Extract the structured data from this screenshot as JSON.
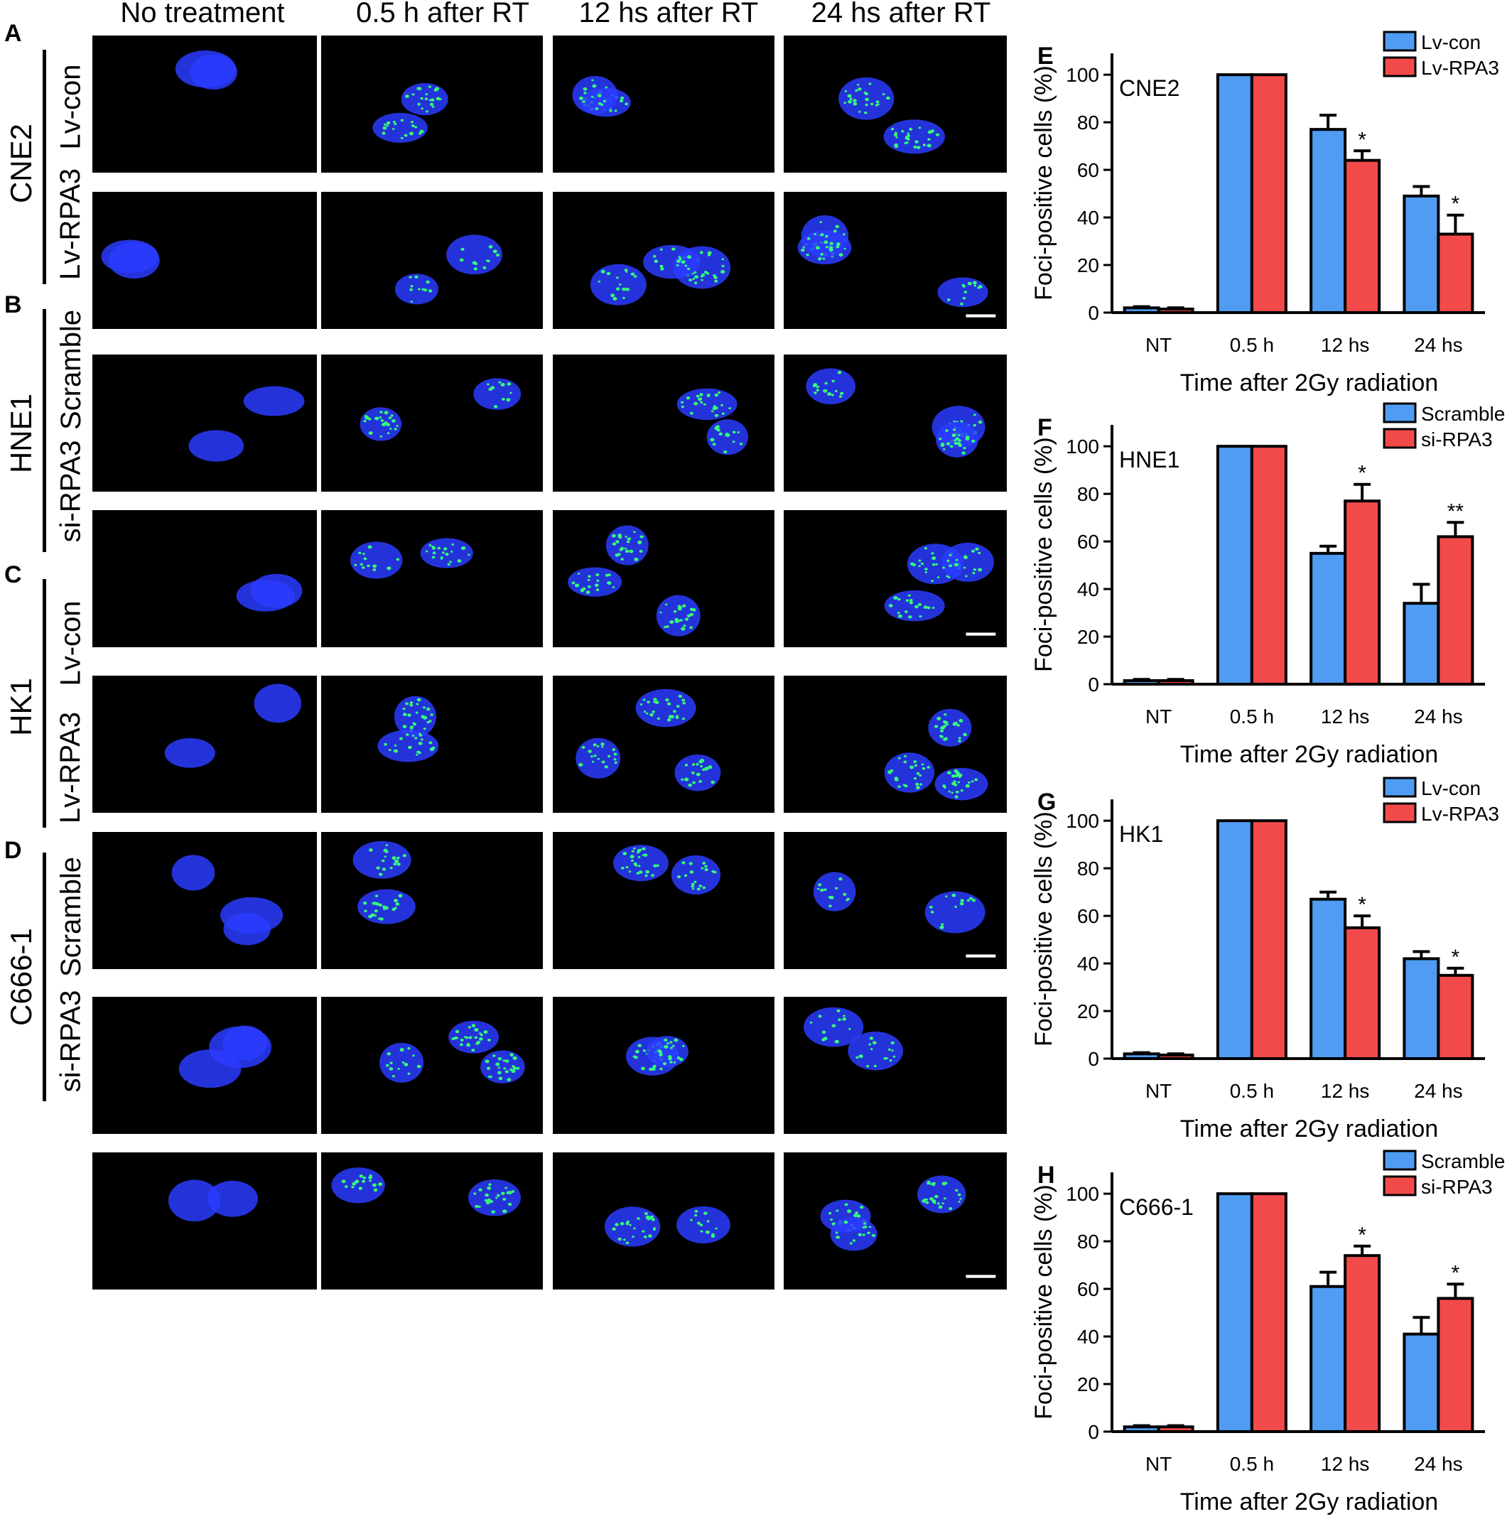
{
  "figure": {
    "column_headers": [
      "No treatment",
      "0.5 h after RT",
      "12 hs after RT",
      "24 hs after RT"
    ],
    "panels": [
      {
        "letter": "A",
        "cell_line": "CNE2",
        "rows": [
          "Lv-con",
          "Lv-RPA3"
        ]
      },
      {
        "letter": "B",
        "cell_line": "HNE1",
        "rows": [
          "Scramble",
          "si-RPA3"
        ]
      },
      {
        "letter": "C",
        "cell_line": "HK1",
        "rows": [
          "Lv-con",
          "Lv-RPA3"
        ]
      },
      {
        "letter": "D",
        "cell_line": "C666-1",
        "rows": [
          "Scramble",
          "si-RPA3"
        ]
      }
    ],
    "colors": {
      "nucleus": "#2a3cff",
      "foci": "#35ff7a",
      "series_control": "#4f9cf2",
      "series_treat": "#f24a4a"
    }
  },
  "chart_data": [
    {
      "letter": "E",
      "type": "bar",
      "title": "CNE2",
      "xlabel": "Time after 2Gy radiation",
      "ylabel": "Foci-positive cells (%)",
      "ylim": [
        0,
        100
      ],
      "yticks": [
        0,
        20,
        40,
        60,
        80,
        100
      ],
      "categories": [
        "NT",
        "0.5 h",
        "12 hs",
        "24 hs"
      ],
      "series": [
        {
          "name": "Lv-con",
          "values": [
            2,
            100,
            77,
            49
          ],
          "errors": [
            0.5,
            0,
            6,
            4
          ]
        },
        {
          "name": "Lv-RPA3",
          "values": [
            1.5,
            100,
            64,
            33
          ],
          "errors": [
            0.5,
            0,
            4,
            8
          ]
        }
      ],
      "significance": [
        "",
        "",
        "*",
        "*"
      ],
      "legend": "top-right"
    },
    {
      "letter": "F",
      "type": "bar",
      "title": "HNE1",
      "xlabel": "Time after 2Gy radiation",
      "ylabel": "Foci-positive cells (%)",
      "ylim": [
        0,
        100
      ],
      "yticks": [
        0,
        20,
        40,
        60,
        80,
        100
      ],
      "categories": [
        "NT",
        "0.5 h",
        "12 hs",
        "24 hs"
      ],
      "series": [
        {
          "name": "Scramble",
          "values": [
            1.5,
            100,
            55,
            34
          ],
          "errors": [
            0.5,
            0,
            3,
            8
          ]
        },
        {
          "name": "si-RPA3",
          "values": [
            1.5,
            100,
            77,
            62
          ],
          "errors": [
            0.5,
            0,
            7,
            6
          ]
        }
      ],
      "significance": [
        "",
        "",
        "*",
        "**"
      ],
      "legend": "top-right"
    },
    {
      "letter": "G",
      "type": "bar",
      "title": "HK1",
      "xlabel": "Time after 2Gy radiation",
      "ylabel": "Foci-positive cells (%)",
      "ylim": [
        0,
        100
      ],
      "yticks": [
        0,
        20,
        40,
        60,
        80,
        100
      ],
      "categories": [
        "NT",
        "0.5 h",
        "12 hs",
        "24 hs"
      ],
      "series": [
        {
          "name": "Lv-con",
          "values": [
            2,
            100,
            67,
            42
          ],
          "errors": [
            0.5,
            0,
            3,
            3
          ]
        },
        {
          "name": "Lv-RPA3",
          "values": [
            1.5,
            100,
            55,
            35
          ],
          "errors": [
            0.5,
            0,
            5,
            3
          ]
        }
      ],
      "significance": [
        "",
        "",
        "*",
        "*"
      ],
      "legend": "top-right"
    },
    {
      "letter": "H",
      "type": "bar",
      "title": "C666-1",
      "xlabel": "Time after 2Gy radiation",
      "ylabel": "Foci-positive cells (%)",
      "ylim": [
        0,
        100
      ],
      "yticks": [
        0,
        20,
        40,
        60,
        80,
        100
      ],
      "categories": [
        "NT",
        "0.5 h",
        "12 hs",
        "24 hs"
      ],
      "series": [
        {
          "name": "Scramble",
          "values": [
            2,
            100,
            61,
            41
          ],
          "errors": [
            0.5,
            0,
            6,
            7
          ]
        },
        {
          "name": "si-RPA3",
          "values": [
            2,
            100,
            74,
            56
          ],
          "errors": [
            0.5,
            0,
            4,
            6
          ]
        }
      ],
      "significance": [
        "",
        "",
        "*",
        "*"
      ],
      "legend": "top-right"
    }
  ]
}
